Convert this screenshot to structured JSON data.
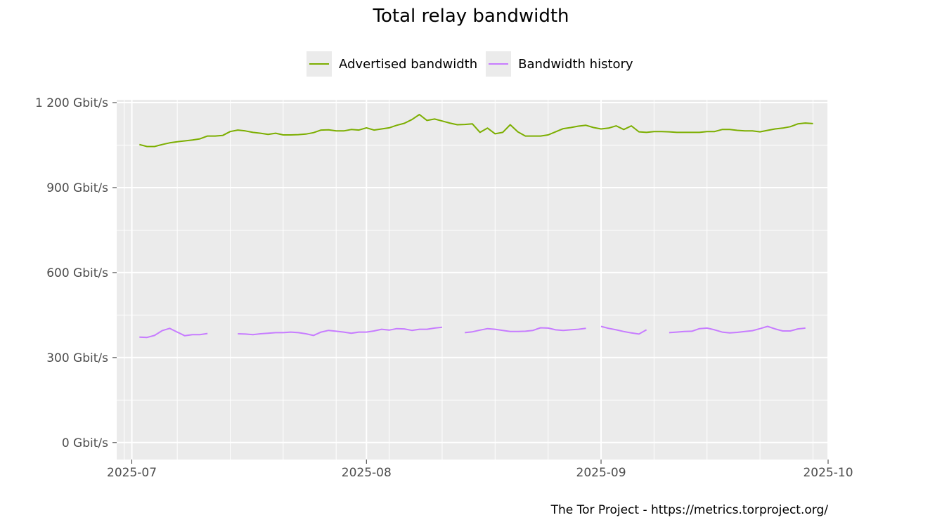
{
  "caption": "The Tor Project - https://metrics.torproject.org/",
  "chart_data": {
    "type": "line",
    "title": "Total relay bandwidth",
    "xlabel": "",
    "ylabel": "",
    "ylim": [
      -60,
      1210
    ],
    "xlim": [
      "2025-06-29",
      "2025-10-01"
    ],
    "y_ticks": [
      0,
      300,
      600,
      900,
      1200
    ],
    "y_tick_labels": [
      "0 Gbit/s",
      "300 Gbit/s",
      "600 Gbit/s",
      "900 Gbit/s",
      "1 200 Gbit/s"
    ],
    "x_ticks": [
      "2025-07-01",
      "2025-08-01",
      "2025-09-01",
      "2025-10-01"
    ],
    "x_tick_labels": [
      "2025-07",
      "2025-08",
      "2025-09",
      "2025-10"
    ],
    "grid": true,
    "legend_position": "top",
    "series": [
      {
        "name": "Advertised bandwidth",
        "color": "#7cae00",
        "points": [
          [
            "2025-07-02",
            1052
          ],
          [
            "2025-07-03",
            1045
          ],
          [
            "2025-07-04",
            1045
          ],
          [
            "2025-07-05",
            1052
          ],
          [
            "2025-07-06",
            1058
          ],
          [
            "2025-07-07",
            1062
          ],
          [
            "2025-07-08",
            1065
          ],
          [
            "2025-07-09",
            1068
          ],
          [
            "2025-07-10",
            1072
          ],
          [
            "2025-07-11",
            1082
          ],
          [
            "2025-07-12",
            1082
          ],
          [
            "2025-07-13",
            1084
          ],
          [
            "2025-07-14",
            1098
          ],
          [
            "2025-07-15",
            1103
          ],
          [
            "2025-07-16",
            1100
          ],
          [
            "2025-07-17",
            1095
          ],
          [
            "2025-07-18",
            1092
          ],
          [
            "2025-07-19",
            1088
          ],
          [
            "2025-07-20",
            1092
          ],
          [
            "2025-07-21",
            1086
          ],
          [
            "2025-07-22",
            1086
          ],
          [
            "2025-07-23",
            1087
          ],
          [
            "2025-07-24",
            1089
          ],
          [
            "2025-07-25",
            1094
          ],
          [
            "2025-07-26",
            1103
          ],
          [
            "2025-07-27",
            1104
          ],
          [
            "2025-07-28",
            1100
          ],
          [
            "2025-07-29",
            1100
          ],
          [
            "2025-07-30",
            1105
          ],
          [
            "2025-07-31",
            1103
          ],
          [
            "2025-08-01",
            1111
          ],
          [
            "2025-08-02",
            1103
          ],
          [
            "2025-08-03",
            1107
          ],
          [
            "2025-08-04",
            1111
          ],
          [
            "2025-08-05",
            1120
          ],
          [
            "2025-08-06",
            1127
          ],
          [
            "2025-08-07",
            1140
          ],
          [
            "2025-08-08",
            1158
          ],
          [
            "2025-08-09",
            1137
          ],
          [
            "2025-08-10",
            1142
          ],
          [
            "2025-08-11",
            1135
          ],
          [
            "2025-08-12",
            1128
          ],
          [
            "2025-08-13",
            1122
          ],
          [
            "2025-08-14",
            1123
          ],
          [
            "2025-08-15",
            1125
          ],
          [
            "2025-08-16",
            1095
          ],
          [
            "2025-08-17",
            1110
          ],
          [
            "2025-08-18",
            1090
          ],
          [
            "2025-08-19",
            1095
          ],
          [
            "2025-08-20",
            1122
          ],
          [
            "2025-08-21",
            1097
          ],
          [
            "2025-08-22",
            1082
          ],
          [
            "2025-08-23",
            1082
          ],
          [
            "2025-08-24",
            1082
          ],
          [
            "2025-08-25",
            1086
          ],
          [
            "2025-08-26",
            1097
          ],
          [
            "2025-08-27",
            1108
          ],
          [
            "2025-08-28",
            1112
          ],
          [
            "2025-08-29",
            1117
          ],
          [
            "2025-08-30",
            1120
          ],
          [
            "2025-08-31",
            1112
          ],
          [
            "2025-09-01",
            1107
          ],
          [
            "2025-09-02",
            1110
          ],
          [
            "2025-09-03",
            1118
          ],
          [
            "2025-09-04",
            1105
          ],
          [
            "2025-09-05",
            1118
          ],
          [
            "2025-09-06",
            1097
          ],
          [
            "2025-09-07",
            1095
          ],
          [
            "2025-09-08",
            1098
          ],
          [
            "2025-09-09",
            1098
          ],
          [
            "2025-09-10",
            1097
          ],
          [
            "2025-09-11",
            1095
          ],
          [
            "2025-09-12",
            1095
          ],
          [
            "2025-09-13",
            1095
          ],
          [
            "2025-09-14",
            1095
          ],
          [
            "2025-09-15",
            1098
          ],
          [
            "2025-09-16",
            1098
          ],
          [
            "2025-09-17",
            1105
          ],
          [
            "2025-09-18",
            1105
          ],
          [
            "2025-09-19",
            1102
          ],
          [
            "2025-09-20",
            1100
          ],
          [
            "2025-09-21",
            1100
          ],
          [
            "2025-09-22",
            1097
          ],
          [
            "2025-09-23",
            1102
          ],
          [
            "2025-09-24",
            1107
          ],
          [
            "2025-09-25",
            1110
          ],
          [
            "2025-09-26",
            1115
          ],
          [
            "2025-09-27",
            1125
          ],
          [
            "2025-09-28",
            1128
          ],
          [
            "2025-09-29",
            1126
          ]
        ]
      },
      {
        "name": "Bandwidth history",
        "color": "#c77cff",
        "segments": [
          [
            [
              "2025-07-02",
              372
            ],
            [
              "2025-07-03",
              371
            ],
            [
              "2025-07-04",
              378
            ],
            [
              "2025-07-05",
              395
            ],
            [
              "2025-07-06",
              403
            ],
            [
              "2025-07-07",
              390
            ],
            [
              "2025-07-08",
              377
            ],
            [
              "2025-07-09",
              381
            ],
            [
              "2025-07-10",
              381
            ],
            [
              "2025-07-11",
              385
            ]
          ],
          [
            [
              "2025-07-15",
              384
            ],
            [
              "2025-07-16",
              383
            ],
            [
              "2025-07-17",
              381
            ],
            [
              "2025-07-18",
              384
            ],
            [
              "2025-07-19",
              386
            ],
            [
              "2025-07-20",
              388
            ],
            [
              "2025-07-21",
              388
            ],
            [
              "2025-07-22",
              390
            ],
            [
              "2025-07-23",
              388
            ],
            [
              "2025-07-24",
              384
            ],
            [
              "2025-07-25",
              378
            ],
            [
              "2025-07-26",
              390
            ],
            [
              "2025-07-27",
              396
            ],
            [
              "2025-07-28",
              393
            ],
            [
              "2025-07-29",
              390
            ],
            [
              "2025-07-30",
              386
            ],
            [
              "2025-07-31",
              390
            ],
            [
              "2025-08-01",
              390
            ],
            [
              "2025-08-02",
              394
            ],
            [
              "2025-08-03",
              400
            ],
            [
              "2025-08-04",
              397
            ],
            [
              "2025-08-05",
              402
            ],
            [
              "2025-08-06",
              401
            ],
            [
              "2025-08-07",
              396
            ],
            [
              "2025-08-08",
              400
            ],
            [
              "2025-08-09",
              400
            ],
            [
              "2025-08-10",
              404
            ],
            [
              "2025-08-11",
              407
            ]
          ],
          [
            [
              "2025-08-14",
              388
            ],
            [
              "2025-08-15",
              391
            ],
            [
              "2025-08-16",
              397
            ],
            [
              "2025-08-17",
              402
            ],
            [
              "2025-08-18",
              400
            ],
            [
              "2025-08-19",
              396
            ],
            [
              "2025-08-20",
              392
            ],
            [
              "2025-08-21",
              392
            ],
            [
              "2025-08-22",
              393
            ],
            [
              "2025-08-23",
              396
            ],
            [
              "2025-08-24",
              405
            ],
            [
              "2025-08-25",
              404
            ],
            [
              "2025-08-26",
              398
            ],
            [
              "2025-08-27",
              396
            ],
            [
              "2025-08-28",
              398
            ],
            [
              "2025-08-29",
              400
            ],
            [
              "2025-08-30",
              403
            ]
          ],
          [
            [
              "2025-09-01",
              410
            ],
            [
              "2025-09-02",
              403
            ],
            [
              "2025-09-03",
              398
            ],
            [
              "2025-09-04",
              392
            ],
            [
              "2025-09-05",
              387
            ],
            [
              "2025-09-06",
              383
            ],
            [
              "2025-09-07",
              398
            ]
          ],
          [
            [
              "2025-09-10",
              388
            ],
            [
              "2025-09-11",
              390
            ],
            [
              "2025-09-12",
              392
            ],
            [
              "2025-09-13",
              393
            ],
            [
              "2025-09-14",
              402
            ],
            [
              "2025-09-15",
              404
            ],
            [
              "2025-09-16",
              398
            ],
            [
              "2025-09-17",
              390
            ],
            [
              "2025-09-18",
              387
            ],
            [
              "2025-09-19",
              389
            ],
            [
              "2025-09-20",
              392
            ],
            [
              "2025-09-21",
              395
            ],
            [
              "2025-09-22",
              402
            ],
            [
              "2025-09-23",
              410
            ],
            [
              "2025-09-24",
              401
            ],
            [
              "2025-09-25",
              394
            ],
            [
              "2025-09-26",
              394
            ],
            [
              "2025-09-27",
              401
            ],
            [
              "2025-09-28",
              404
            ]
          ]
        ]
      }
    ]
  }
}
